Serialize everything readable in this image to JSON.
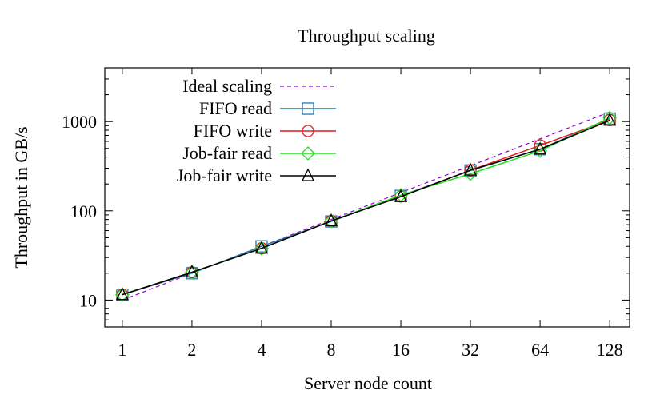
{
  "chart_data": {
    "type": "line",
    "title": "Throughput scaling",
    "xlabel": "Server node count",
    "ylabel": "Throughput in GB/s",
    "x_scale": "log2",
    "y_scale": "log10",
    "x": [
      1,
      2,
      4,
      8,
      16,
      32,
      64,
      128
    ],
    "x_tick_labels": [
      "1",
      "2",
      "4",
      "8",
      "16",
      "32",
      "64",
      "128"
    ],
    "y_ticks": [
      10,
      100,
      1000
    ],
    "y_tick_labels": [
      "10",
      "100",
      "1000"
    ],
    "xlim": [
      0.84,
      156
    ],
    "ylim": [
      5,
      4000
    ],
    "legend_position": "top-left",
    "grid": false,
    "series": [
      {
        "name": "Ideal scaling",
        "style": "dashed",
        "marker": "none",
        "color": "#9400d3",
        "values": [
          10,
          20,
          40,
          80,
          160,
          320,
          640,
          1280
        ]
      },
      {
        "name": "FIFO read",
        "style": "solid",
        "marker": "square",
        "color": "#1f78b4",
        "values": [
          11.5,
          20,
          40,
          76,
          147,
          283,
          490,
          1080
        ]
      },
      {
        "name": "FIFO write",
        "style": "solid",
        "marker": "circle",
        "color": "#e41a1c",
        "values": [
          11.5,
          20.5,
          38,
          77,
          145,
          285,
          540,
          1040
        ]
      },
      {
        "name": "Job-fair read",
        "style": "solid",
        "marker": "diamond",
        "color": "#22dd22",
        "values": [
          11.5,
          20.5,
          38,
          77,
          150,
          260,
          470,
          1100
        ]
      },
      {
        "name": "Job-fair write",
        "style": "solid",
        "marker": "triangle",
        "color": "#000000",
        "values": [
          11.5,
          20.5,
          38,
          77,
          144,
          285,
          490,
          1030
        ]
      }
    ]
  }
}
